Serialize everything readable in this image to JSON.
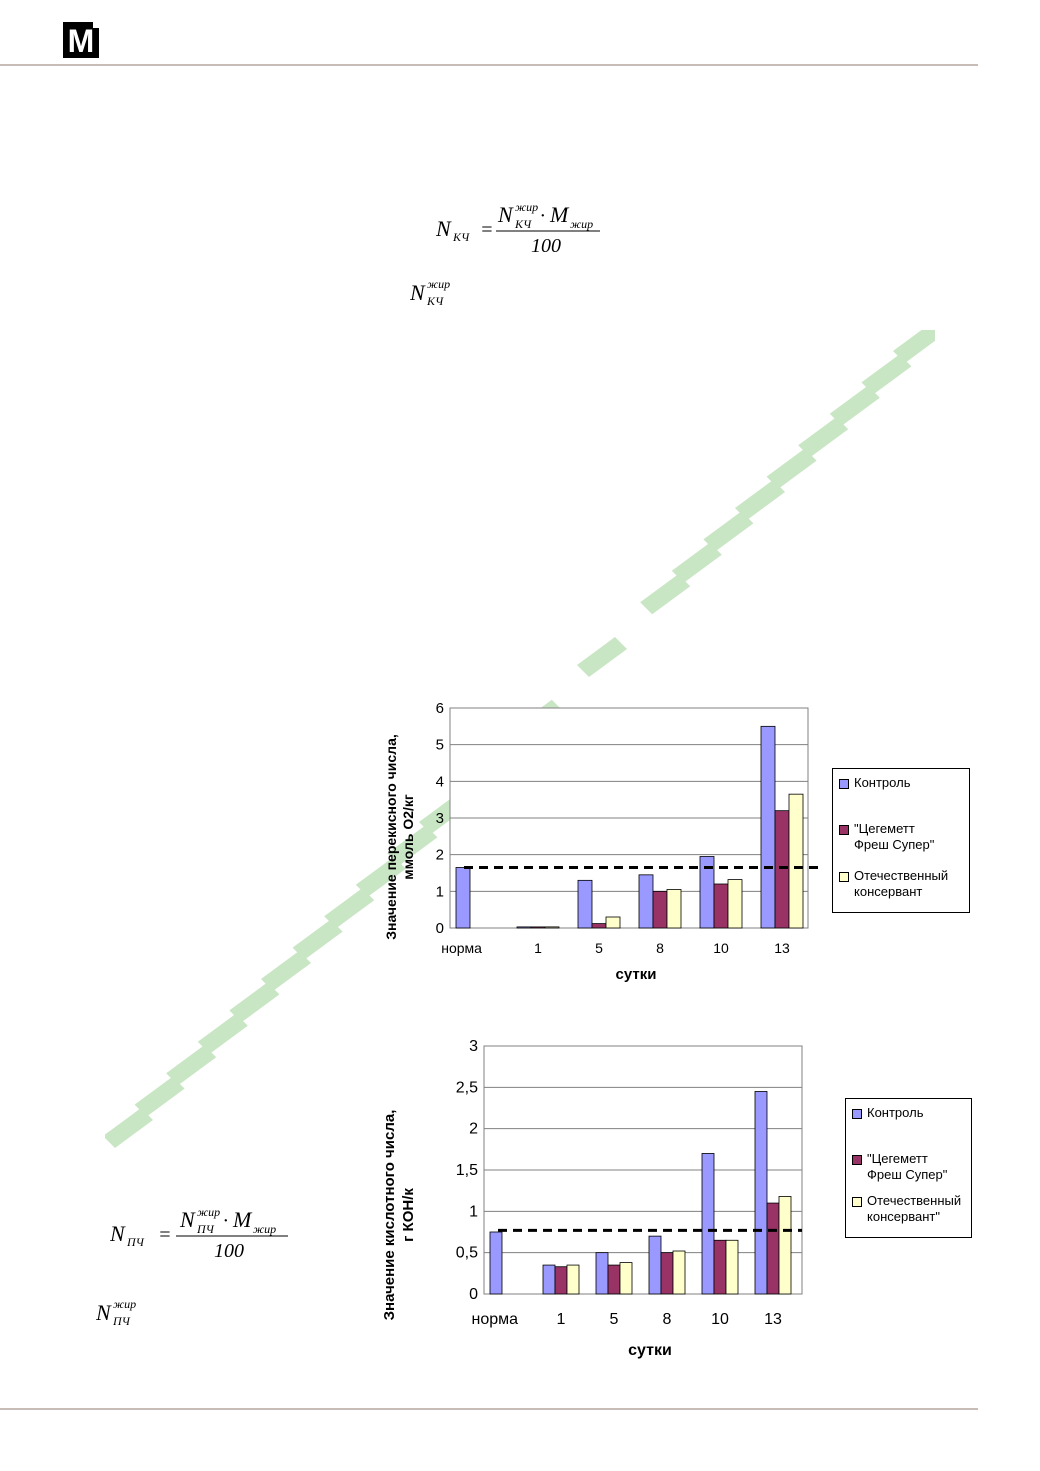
{
  "header": {
    "logo_letter": "M"
  },
  "formulas": {
    "kch": {
      "lhs_symbol": "N",
      "lhs_sub": "КЧ",
      "num_symbol": "N",
      "num_sup": "жир",
      "num_sub": "КЧ",
      "m_symbol": "M",
      "m_sub": "жир",
      "denominator": "100"
    },
    "kch_ref": {
      "symbol": "N",
      "sup": "жир",
      "sub": "КЧ"
    },
    "pch": {
      "lhs_symbol": "N",
      "lhs_sub": "ПЧ",
      "num_symbol": "N",
      "num_sup": "жир",
      "num_sub": "ПЧ",
      "m_symbol": "M",
      "m_sub": "жир",
      "denominator": "100"
    },
    "pch_ref": {
      "symbol": "N",
      "sup": "жир",
      "sub": "ПЧ"
    }
  },
  "colors": {
    "control": "#9999ff",
    "tsegemett": "#993366",
    "domestic": "#ffffcc",
    "watermark": "#c9e6c4",
    "rule": "#c8bcb6"
  },
  "chart_data": [
    {
      "type": "bar",
      "ylabel_line1": "Значение перекисного числа,",
      "ylabel_line2": "ммоль О2/кг",
      "xlabel": "сутки",
      "ylim": [
        0,
        6
      ],
      "yticks": [
        "0",
        "1",
        "2",
        "3",
        "4",
        "5",
        "6"
      ],
      "categories": [
        "норма",
        "1",
        "5",
        "8",
        "10",
        "13"
      ],
      "series": [
        {
          "name": "Контроль",
          "values": [
            1.65,
            0.03,
            1.3,
            1.45,
            1.95,
            5.5
          ]
        },
        {
          "name": "\"Цегеметт\nФреш Супер\"",
          "values": [
            null,
            0.03,
            0.12,
            1.0,
            1.2,
            3.2
          ]
        },
        {
          "name": "Отечественный\nконсервант",
          "values": [
            null,
            0.03,
            0.3,
            1.05,
            1.32,
            3.65
          ]
        }
      ],
      "reference_line": 1.65,
      "grid": true,
      "legend_position": "right"
    },
    {
      "type": "bar",
      "ylabel_line1": "Значение кислотного числа,",
      "ylabel_line2": "г КОН/к",
      "xlabel": "сутки",
      "ylim": [
        0,
        3
      ],
      "yticks": [
        "0",
        "0,5",
        "1",
        "1,5",
        "2",
        "2,5",
        "3"
      ],
      "categories": [
        "норма",
        "1",
        "5",
        "8",
        "10",
        "13"
      ],
      "series": [
        {
          "name": "Контроль",
          "values": [
            0.75,
            0.35,
            0.5,
            0.7,
            1.7,
            2.45
          ]
        },
        {
          "name": "\"Цегеметт\nФреш Супер\"",
          "values": [
            null,
            0.33,
            0.35,
            0.5,
            0.65,
            1.1
          ]
        },
        {
          "name": "Отечественный\nконсервант\"",
          "values": [
            null,
            0.35,
            0.38,
            0.52,
            0.65,
            1.18
          ]
        }
      ],
      "reference_line": 0.77,
      "grid": true,
      "legend_position": "right"
    }
  ]
}
